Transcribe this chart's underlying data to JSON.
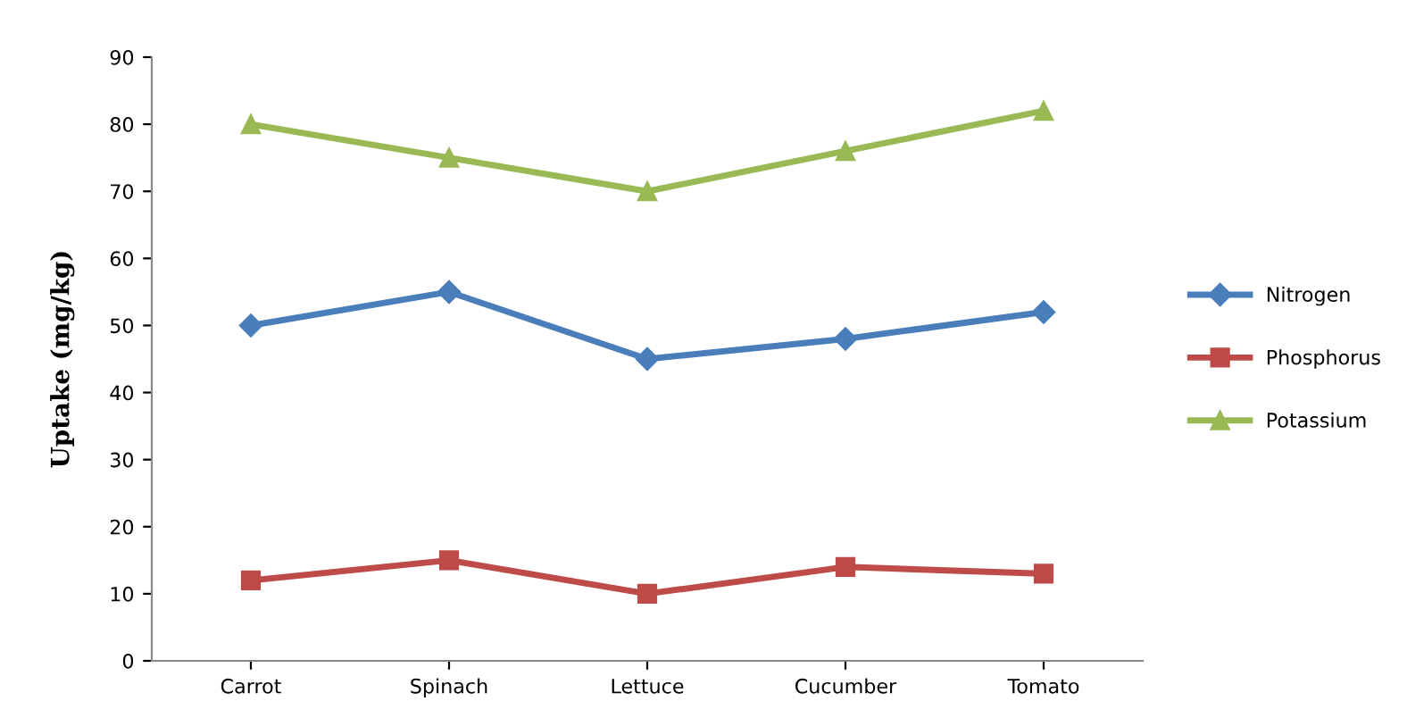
{
  "chart_data": {
    "type": "line",
    "ylabel": "Uptake (mg/kg)",
    "categories": [
      "Carrot",
      "Spinach",
      "Lettuce",
      "Cucumber",
      "Tomato"
    ],
    "series": [
      {
        "name": "Nitrogen",
        "color": "#4a7ebb",
        "marker": "diamond",
        "values": [
          50,
          55,
          45,
          48,
          52
        ]
      },
      {
        "name": "Phosphorus",
        "color": "#be4b48",
        "marker": "square",
        "values": [
          12,
          15,
          10,
          14,
          13
        ]
      },
      {
        "name": "Potassium",
        "color": "#98b954",
        "marker": "triangle",
        "values": [
          80,
          75,
          70,
          76,
          82
        ]
      }
    ],
    "ylim": [
      0,
      90
    ],
    "yticks": [
      0,
      10,
      20,
      30,
      40,
      50,
      60,
      70,
      80,
      90
    ],
    "grid": false,
    "legend": "right",
    "line_style": "solid"
  }
}
